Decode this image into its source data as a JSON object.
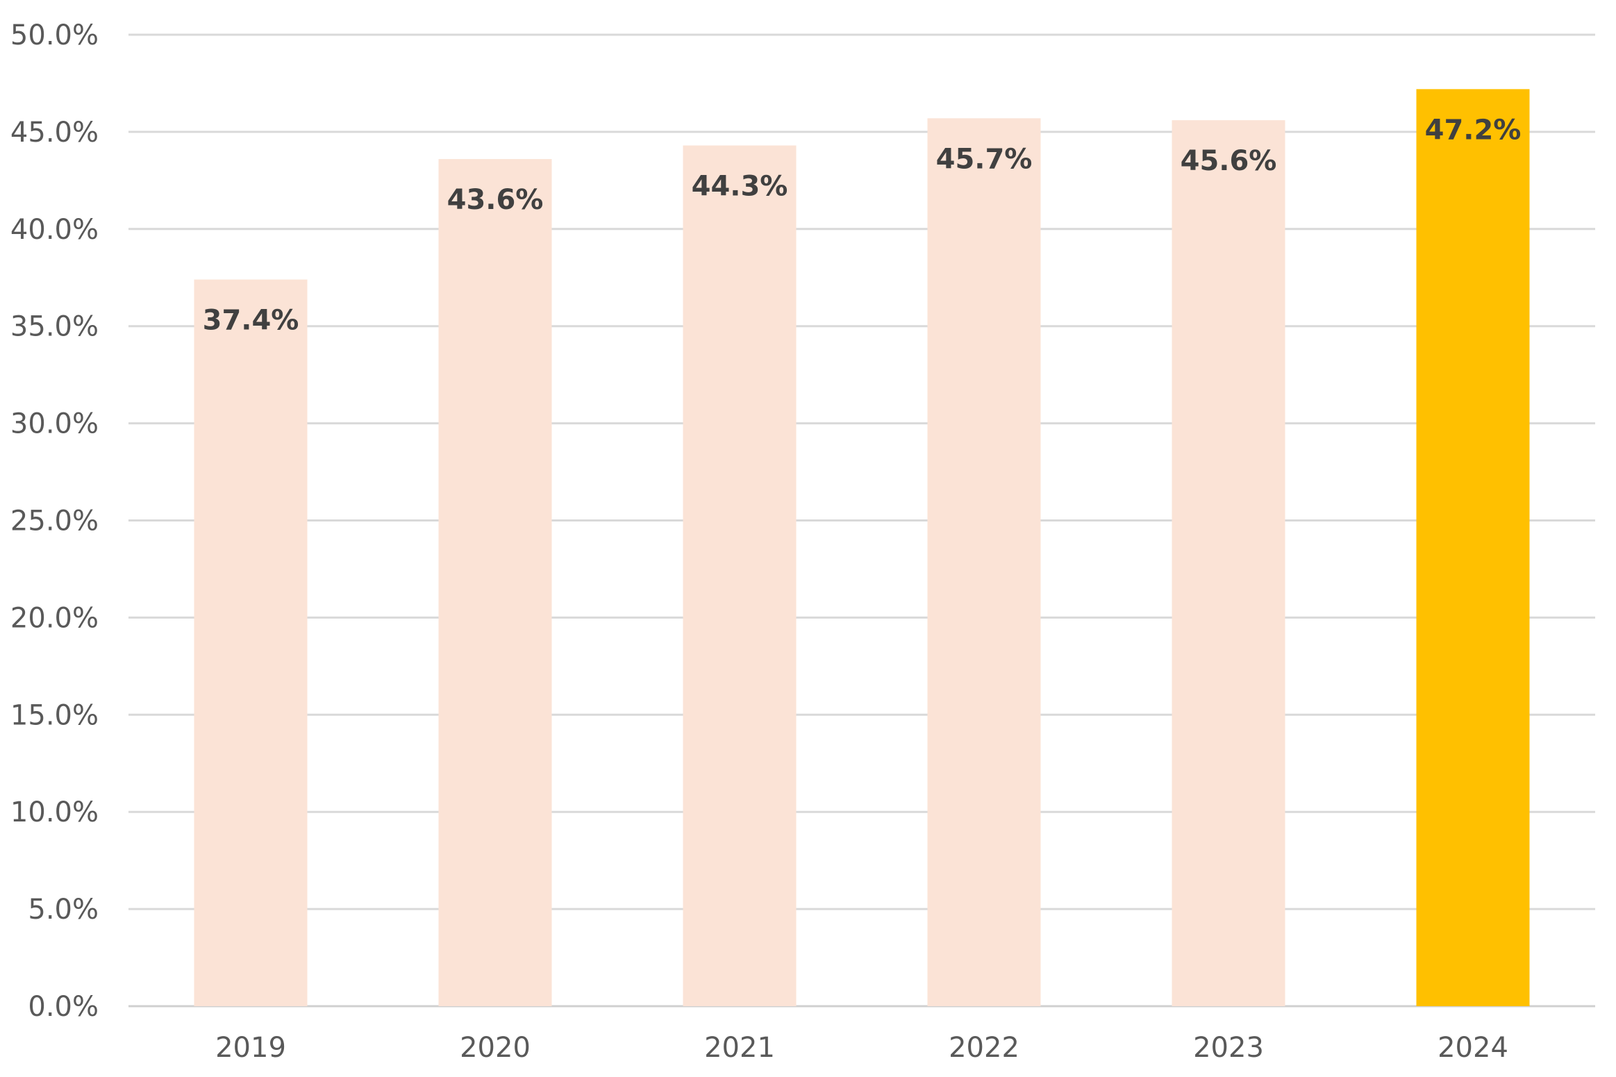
{
  "chart_data": {
    "type": "bar",
    "title": "",
    "xlabel": "",
    "ylabel": "",
    "categories": [
      "2019",
      "2020",
      "2021",
      "2022",
      "2023",
      "2024"
    ],
    "values": [
      37.4,
      43.6,
      44.3,
      45.7,
      45.6,
      47.2
    ],
    "data_labels": [
      "37.4%",
      "43.6%",
      "44.3%",
      "45.7%",
      "45.6%",
      "47.2%"
    ],
    "ylim": [
      0,
      50
    ],
    "y_ticks": [
      0,
      5,
      10,
      15,
      20,
      25,
      30,
      35,
      40,
      45,
      50
    ],
    "y_tick_labels": [
      "0.0%",
      "5.0%",
      "10.0%",
      "15.0%",
      "20.0%",
      "25.0%",
      "30.0%",
      "35.0%",
      "40.0%",
      "45.0%",
      "50.0%"
    ],
    "grid": true,
    "legend": "none",
    "colors": {
      "bar_default": "#fbe3d6",
      "bar_highlight": "#ffc000",
      "gridline": "#d9d9d9"
    },
    "highlight_index": 5
  }
}
